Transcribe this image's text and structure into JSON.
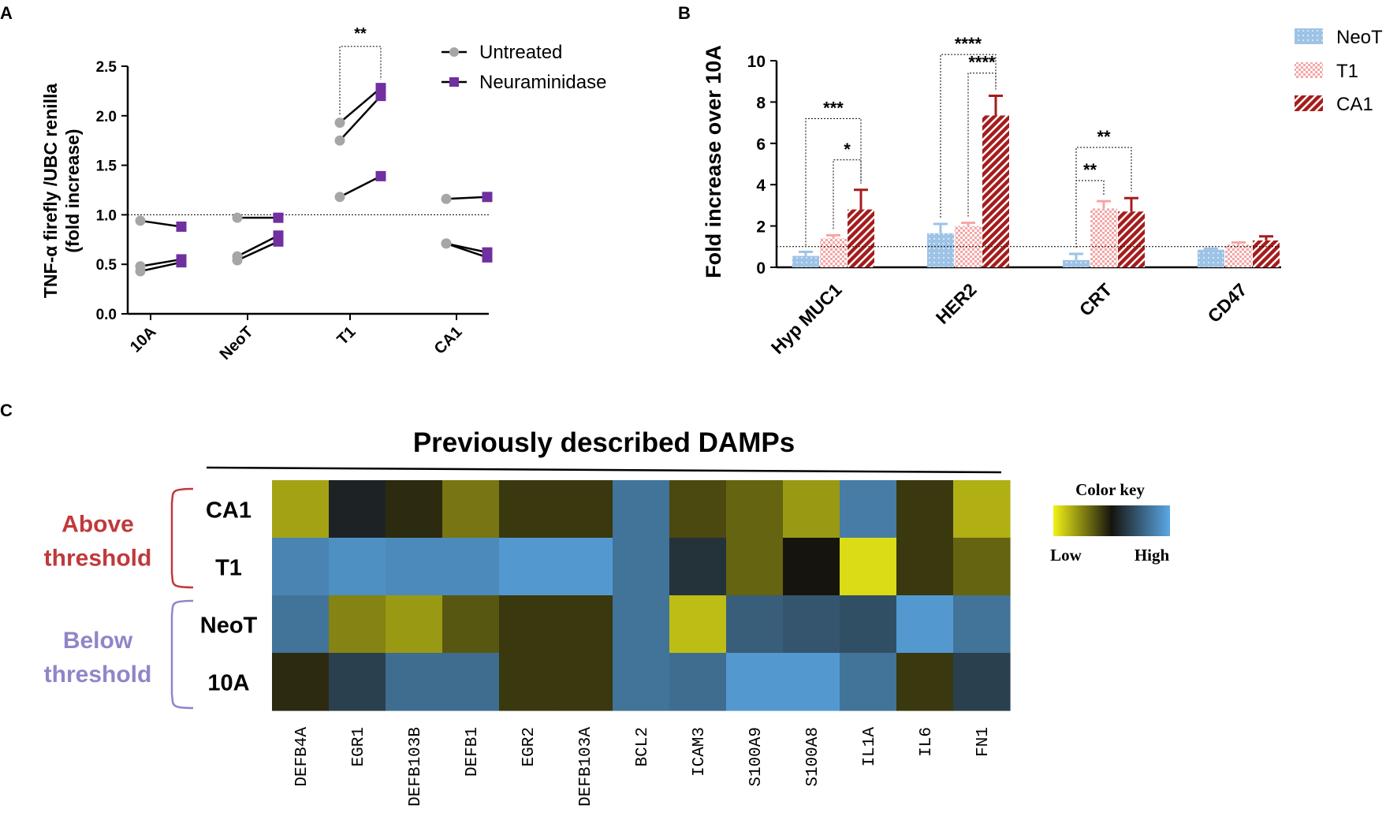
{
  "panels": {
    "a": {
      "letter": "A",
      "chart_data": {
        "type": "line",
        "title": "",
        "ylabel": [
          "TNF-α firefly /UBC renilla",
          "(fold increase)"
        ],
        "ylim": [
          0,
          2.5
        ],
        "yticks": [
          "0.0",
          "0.5",
          "1.0",
          "1.5",
          "2.0",
          "2.5"
        ],
        "ytick_values": [
          0,
          0.5,
          1.0,
          1.5,
          2.0,
          2.5
        ],
        "reference_line": 1.0,
        "categories": [
          "10A",
          "NeoT",
          "T1",
          "CA1"
        ],
        "legend": [
          "Untreated",
          "Neuraminidase"
        ],
        "series_colors": {
          "Untreated": "#a6a6a6",
          "Neuraminidase": "#7030a0"
        },
        "pairs": [
          {
            "category": "10A",
            "untreated": [
              0.94,
              0.48,
              0.43
            ],
            "neuraminidase": [
              0.88,
              0.55,
              0.52
            ]
          },
          {
            "category": "NeoT",
            "untreated": [
              0.97,
              0.58,
              0.54
            ],
            "neuraminidase": [
              0.97,
              0.79,
              0.73
            ]
          },
          {
            "category": "T1",
            "untreated": [
              1.93,
              1.75,
              1.18
            ],
            "neuraminidase": [
              2.28,
              2.2,
              1.39
            ]
          },
          {
            "category": "CA1",
            "untreated": [
              1.16,
              0.71,
              0.71
            ],
            "neuraminidase": [
              1.18,
              0.62,
              0.57
            ]
          }
        ],
        "annotations": [
          {
            "category": "T1",
            "text": "**",
            "y": 2.7
          }
        ]
      }
    },
    "b": {
      "letter": "B",
      "chart_data": {
        "type": "bar",
        "title": "",
        "ylabel": "Fold increase over 10A",
        "ylim": [
          0,
          10
        ],
        "yticks": [
          "0",
          "2",
          "4",
          "6",
          "8",
          "10"
        ],
        "ytick_values": [
          0,
          2,
          4,
          6,
          8,
          10
        ],
        "reference_line": 1.0,
        "categories": [
          "Hyp MUC1",
          "HER2",
          "CRT",
          "CD47"
        ],
        "legend": [
          "NeoT",
          "T1",
          "CA1"
        ],
        "series": [
          {
            "name": "NeoT",
            "values": [
              0.55,
              1.65,
              0.35,
              0.85
            ],
            "errors": [
              0.2,
              0.45,
              0.3,
              0.05
            ],
            "color": "#9dc3e6"
          },
          {
            "name": "T1",
            "values": [
              1.4,
              2.0,
              2.85,
              1.1
            ],
            "errors": [
              0.15,
              0.15,
              0.35,
              0.1
            ],
            "color": "#f4a6a6"
          },
          {
            "name": "CA1",
            "values": [
              2.8,
              7.35,
              2.7,
              1.3
            ],
            "errors": [
              0.95,
              0.95,
              0.65,
              0.2
            ],
            "color": "#a51c1c"
          }
        ],
        "significance": [
          {
            "category": "Hyp MUC1",
            "from": "NeoT",
            "to": "CA1",
            "text": "***",
            "y": 7.2
          },
          {
            "category": "Hyp MUC1",
            "from": "T1",
            "to": "CA1",
            "text": "*",
            "y": 5.2
          },
          {
            "category": "HER2",
            "from": "NeoT",
            "to": "CA1",
            "text": "****",
            "y": 10.3
          },
          {
            "category": "HER2",
            "from": "T1",
            "to": "CA1",
            "text": "****",
            "y": 9.4
          },
          {
            "category": "CRT",
            "from": "NeoT",
            "to": "T1",
            "text": "**",
            "y": 4.2
          },
          {
            "category": "CRT",
            "from": "NeoT",
            "to": "CA1",
            "text": "**",
            "y": 5.8
          }
        ]
      }
    },
    "c": {
      "letter": "C",
      "chart_data": {
        "type": "heatmap",
        "title": "Previously described DAMPs",
        "rows": [
          "CA1",
          "T1",
          "NeoT",
          "10A"
        ],
        "columns": [
          "DEFB4A",
          "EGR1",
          "DEFB103B",
          "DEFB1",
          "EGR2",
          "DEFB103A",
          "BCL2",
          "ICAM3",
          "S100A9",
          "S100A8",
          "IL1A",
          "IL6",
          "FN1"
        ],
        "values": [
          [
            0.18,
            0.55,
            0.45,
            0.28,
            0.42,
            0.42,
            0.82,
            0.38,
            0.32,
            0.2,
            0.85,
            0.42,
            0.15
          ],
          [
            0.88,
            0.92,
            0.9,
            0.9,
            0.95,
            0.95,
            0.82,
            0.6,
            0.32,
            0.5,
            0.05,
            0.42,
            0.32
          ],
          [
            0.82,
            0.25,
            0.2,
            0.35,
            0.42,
            0.42,
            0.82,
            0.12,
            0.75,
            0.72,
            0.7,
            0.95,
            0.82
          ],
          [
            0.45,
            0.65,
            0.8,
            0.8,
            0.42,
            0.42,
            0.82,
            0.8,
            0.95,
            0.95,
            0.82,
            0.42,
            0.65
          ]
        ],
        "groups": [
          {
            "label_lines": [
              "Above",
              "threshold"
            ],
            "rows": [
              "CA1",
              "T1"
            ],
            "color": "#c0393b"
          },
          {
            "label_lines": [
              "Below",
              "threshold"
            ],
            "rows": [
              "NeoT",
              "10A"
            ],
            "color": "#8e86c8"
          }
        ],
        "color_key": {
          "title": "Color key",
          "low": "Low",
          "high": "High",
          "colors": [
            "#f2f217",
            "#16140e",
            "#5aa8e6"
          ]
        }
      }
    }
  }
}
